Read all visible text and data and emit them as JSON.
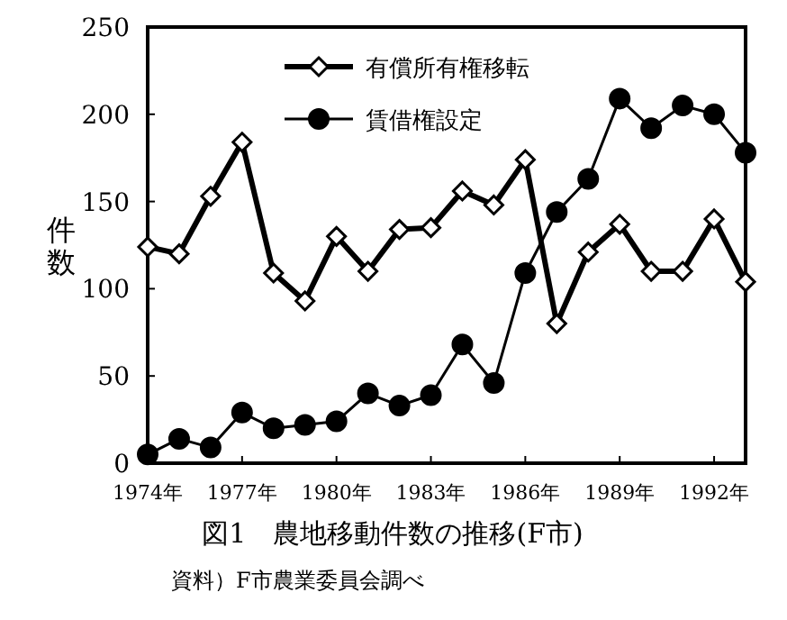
{
  "chart_data": {
    "type": "line",
    "title": "図1　農地移動件数の推移(F市)",
    "ylabel": "件数",
    "annotations": [
      "資料）F市農業委員会調べ"
    ],
    "x": [
      1974,
      1975,
      1976,
      1977,
      1978,
      1979,
      1980,
      1981,
      1982,
      1983,
      1984,
      1985,
      1986,
      1987,
      1988,
      1989,
      1990,
      1991,
      1992,
      1993
    ],
    "xlim": [
      1974,
      1993
    ],
    "xticks": [
      {
        "value": 1974,
        "label": "1974年"
      },
      {
        "value": 1977,
        "label": "1977年"
      },
      {
        "value": 1980,
        "label": "1980年"
      },
      {
        "value": 1983,
        "label": "1983年"
      },
      {
        "value": 1986,
        "label": "1986年"
      },
      {
        "value": 1989,
        "label": "1989年"
      },
      {
        "value": 1992,
        "label": "1992年"
      }
    ],
    "ylim": [
      0,
      250
    ],
    "yticks": [
      0,
      50,
      100,
      150,
      200,
      250
    ],
    "legend": "top",
    "grid": false,
    "series": [
      {
        "name": "有償所有権移転",
        "color": "#000000",
        "marker": "diamond",
        "values": [
          124,
          120,
          153,
          184,
          109,
          93,
          130,
          110,
          134,
          135,
          156,
          148,
          174,
          80,
          121,
          137,
          110,
          110,
          140,
          104
        ]
      },
      {
        "name": "賃借権設定",
        "color": "#000000",
        "marker": "circle",
        "values": [
          5,
          14,
          9,
          29,
          20,
          22,
          24,
          40,
          33,
          39,
          68,
          46,
          109,
          144,
          163,
          209,
          192,
          205,
          200,
          178
        ]
      }
    ]
  }
}
